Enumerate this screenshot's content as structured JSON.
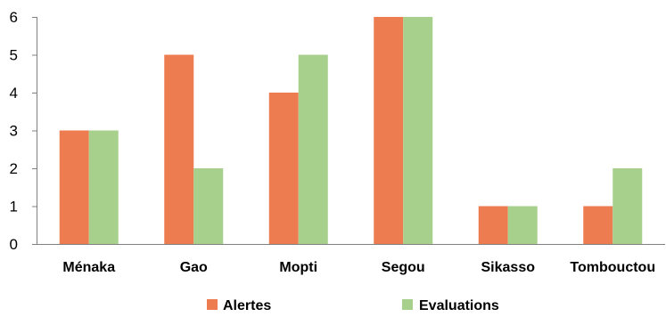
{
  "chart_data": {
    "type": "bar",
    "categories": [
      "Ménaka",
      "Gao",
      "Mopti",
      "Segou",
      "Sikasso",
      "Tombouctou"
    ],
    "series": [
      {
        "name": "Alertes",
        "values": [
          3,
          5,
          4,
          6,
          1,
          1
        ],
        "color": "#ED7D50"
      },
      {
        "name": "Evaluations",
        "values": [
          3,
          2,
          5,
          6,
          1,
          2
        ],
        "color": "#A8D08D"
      }
    ],
    "ylim": [
      0,
      6
    ],
    "yticks": [
      0,
      1,
      2,
      3,
      4,
      5,
      6
    ],
    "grid": false,
    "legend_position": "bottom"
  }
}
